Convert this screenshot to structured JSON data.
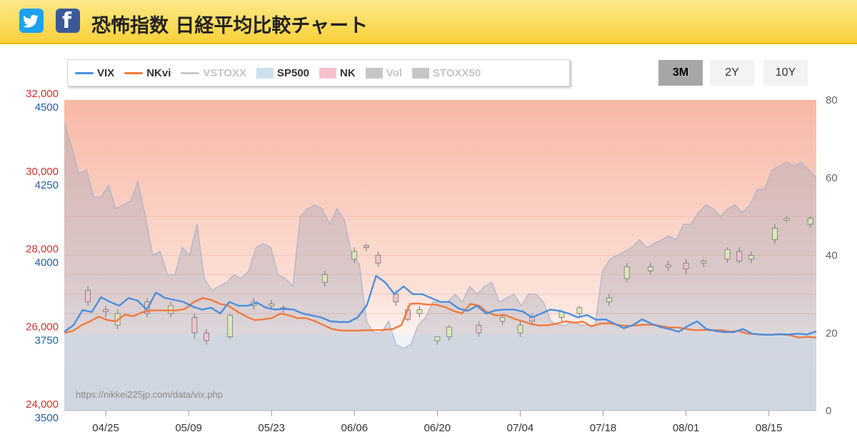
{
  "header": {
    "title": "恐怖指数 日経平均比較チャート",
    "twitter_icon": "twitter-icon",
    "facebook_icon": "facebook-icon"
  },
  "range_buttons": [
    {
      "label": "3M",
      "active": true
    },
    {
      "label": "2Y",
      "active": false
    },
    {
      "label": "10Y",
      "active": false
    }
  ],
  "colors": {
    "vix": "#4a8fe0",
    "nkvi": "#f07b3f",
    "vstoxx": "#c8c8c8",
    "sp500": "#cde0ee",
    "nk": "#f6c1cf",
    "vol": "#c6c6c6",
    "stoxx50": "#c6c6c6"
  },
  "chart_data": {
    "type": "line",
    "watermark": "https://nikkei225jp.com/data/vix.php",
    "legend": [
      {
        "name": "VIX",
        "kind": "line",
        "enabled": true
      },
      {
        "name": "NKvi",
        "kind": "line",
        "enabled": true
      },
      {
        "name": "VSTOXX",
        "kind": "line",
        "enabled": false
      },
      {
        "name": "SP500",
        "kind": "box",
        "enabled": true
      },
      {
        "name": "NK",
        "kind": "box",
        "enabled": true
      },
      {
        "name": "Vol",
        "kind": "box",
        "enabled": false
      },
      {
        "name": "STOXX50",
        "kind": "box",
        "enabled": false
      }
    ],
    "x_tick_labels": [
      "04/25",
      "05/09",
      "05/23",
      "06/06",
      "06/20",
      "07/04",
      "07/18",
      "08/01",
      "08/15"
    ],
    "axes": {
      "left_nk_ticks": [
        "32,000",
        "30,000",
        "28,000",
        "26,000",
        "24,000"
      ],
      "left_nk_range": [
        24000,
        32000
      ],
      "left_sp_ticks": [
        "4500",
        "4250",
        "4000",
        "3750",
        "3500"
      ],
      "left_sp_range": [
        3500,
        4500
      ],
      "right_ticks": [
        "80",
        "60",
        "40",
        "20",
        "0"
      ],
      "right_range": [
        0,
        80
      ]
    },
    "series": [
      {
        "name": "VIX",
        "values": [
          20.3,
          22,
          25.9,
          25.4,
          29.2,
          28,
          27,
          29,
          28.3,
          26,
          30.4,
          29,
          28.5,
          28,
          26.8,
          26,
          26.5,
          25,
          28,
          27,
          27,
          27.8,
          26.5,
          26,
          26.2,
          26,
          25,
          24.5,
          24,
          23,
          22.8,
          22.8,
          24,
          27.2,
          34.7,
          33,
          30,
          32,
          30,
          30,
          29,
          28,
          28,
          26.3,
          25.7,
          27,
          25,
          25.8,
          26,
          26,
          25.5,
          24,
          25,
          26,
          25.7,
          25,
          24,
          24.6,
          23.4,
          23.5,
          22.4,
          21.2,
          22,
          23.5,
          22.4,
          21.5,
          21,
          20.3,
          21.8,
          23,
          21,
          20.5,
          20.2,
          20.2,
          21,
          19.8,
          19.6,
          19.5,
          19.7,
          19.6,
          19.8,
          19.6,
          20.4
        ]
      },
      {
        "name": "NKvi",
        "values": [
          20,
          20.5,
          22,
          23,
          24.2,
          23.3,
          23,
          24.7,
          24.3,
          25.3,
          25.8,
          25.8,
          25.8,
          25.8,
          26.2,
          28,
          29,
          28.5,
          27.5,
          27,
          25.5,
          24.3,
          23.3,
          23.5,
          23.8,
          25,
          24.5,
          23.8,
          23.8,
          23,
          22,
          21,
          20.6,
          20.6,
          20.6,
          20.7,
          20.7,
          20.8,
          21,
          22,
          27.5,
          27.6,
          27.3,
          27.3,
          26.7,
          25.7,
          25,
          27.5,
          27,
          25.2,
          24.5,
          24.6,
          23.7,
          23,
          22.3,
          21.9,
          22,
          22.4,
          23,
          22.6,
          22.9,
          21.7,
          22.4,
          22.5,
          22.1,
          21.8,
          21.9,
          22.1,
          22.1,
          21.8,
          21.4,
          21.4,
          21,
          20.7,
          20.8,
          20.7,
          20.7,
          20.3,
          20.5,
          19.8,
          19.7,
          19.5,
          19.6,
          19.6,
          19.4,
          18.8,
          19,
          18.8
        ]
      },
      {
        "name": "Vol",
        "values": [
          74,
          68,
          61,
          62,
          55,
          55,
          58,
          52,
          53,
          54,
          59,
          50,
          40,
          41,
          35,
          35,
          42,
          40,
          48,
          34,
          31,
          32,
          33,
          35,
          34,
          36,
          42,
          43,
          42,
          35,
          34,
          32,
          50,
          52,
          53,
          52,
          48,
          52,
          49,
          40,
          38,
          23,
          20,
          20,
          23,
          17,
          16,
          17,
          22,
          24,
          28,
          28,
          28,
          30,
          28,
          32,
          30,
          32,
          33,
          28,
          29,
          30,
          27,
          30,
          30,
          28,
          23,
          22,
          22,
          23,
          22,
          22,
          22,
          36,
          39,
          40,
          41,
          42,
          44,
          42,
          43,
          44,
          45,
          44,
          48,
          48,
          51,
          53,
          52,
          50,
          52,
          53,
          51,
          53,
          57,
          57,
          62,
          63,
          64,
          63,
          64,
          62,
          60
        ]
      }
    ],
    "nk_candles": [
      {
        "date": "04/22",
        "open": 27100,
        "close": 26800,
        "high": 27200,
        "low": 26700
      },
      {
        "date": "04/25",
        "open": 26600,
        "close": 26550,
        "high": 26700,
        "low": 26400
      },
      {
        "date": "04/27",
        "open": 26200,
        "close": 26500,
        "high": 26600,
        "low": 26100
      },
      {
        "date": "05/02",
        "open": 26800,
        "close": 26500,
        "high": 26900,
        "low": 26400
      },
      {
        "date": "05/06",
        "open": 26500,
        "close": 26700,
        "high": 26800,
        "low": 26400
      },
      {
        "date": "05/10",
        "open": 26400,
        "close": 26000,
        "high": 26500,
        "low": 25850
      },
      {
        "date": "05/12",
        "open": 26000,
        "close": 25800,
        "high": 26100,
        "low": 25700
      },
      {
        "date": "05/16",
        "open": 25900,
        "close": 26450,
        "high": 26500,
        "low": 25850
      },
      {
        "date": "05/20",
        "open": 26700,
        "close": 26800,
        "high": 26900,
        "low": 26600
      },
      {
        "date": "05/23",
        "open": 26700,
        "close": 26750,
        "high": 26850,
        "low": 26600
      },
      {
        "date": "05/25",
        "open": 26650,
        "close": 26600,
        "high": 26700,
        "low": 26500
      },
      {
        "date": "06/01",
        "open": 27300,
        "close": 27500,
        "high": 27600,
        "low": 27200
      },
      {
        "date": "06/06",
        "open": 27900,
        "close": 28100,
        "high": 28200,
        "low": 27800
      },
      {
        "date": "06/08",
        "open": 28250,
        "close": 28200,
        "high": 28300,
        "low": 28100
      },
      {
        "date": "06/10",
        "open": 28000,
        "close": 27800,
        "high": 28100,
        "low": 27700
      },
      {
        "date": "06/13",
        "open": 27000,
        "close": 26800,
        "high": 27100,
        "low": 26700
      },
      {
        "date": "06/15",
        "open": 26600,
        "close": 26350,
        "high": 26700,
        "low": 26300
      },
      {
        "date": "06/17",
        "open": 26500,
        "close": 26600,
        "high": 26700,
        "low": 26400
      },
      {
        "date": "06/20",
        "open": 25800,
        "close": 25900,
        "high": 25900,
        "low": 25700
      },
      {
        "date": "06/22",
        "open": 25900,
        "close": 26150,
        "high": 26200,
        "low": 25800
      },
      {
        "date": "06/27",
        "open": 26200,
        "close": 26000,
        "high": 26300,
        "low": 25900
      },
      {
        "date": "07/01",
        "open": 26300,
        "close": 26400,
        "high": 26500,
        "low": 26200
      },
      {
        "date": "07/04",
        "open": 26000,
        "close": 26200,
        "high": 26300,
        "low": 25900
      },
      {
        "date": "07/06",
        "open": 26400,
        "close": 26300,
        "high": 26500,
        "low": 26200
      },
      {
        "date": "07/11",
        "open": 26400,
        "close": 26550,
        "high": 26600,
        "low": 26300
      },
      {
        "date": "07/14",
        "open": 26500,
        "close": 26650,
        "high": 26700,
        "low": 26400
      },
      {
        "date": "07/19",
        "open": 26800,
        "close": 26900,
        "high": 27000,
        "low": 26700
      },
      {
        "date": "07/22",
        "open": 27400,
        "close": 27700,
        "high": 27800,
        "low": 27300
      },
      {
        "date": "07/26",
        "open": 27600,
        "close": 27700,
        "high": 27800,
        "low": 27500
      },
      {
        "date": "07/29",
        "open": 27700,
        "close": 27750,
        "high": 27850,
        "low": 27600
      },
      {
        "date": "08/01",
        "open": 27800,
        "close": 27650,
        "high": 27900,
        "low": 27500
      },
      {
        "date": "08/04",
        "open": 27800,
        "close": 27850,
        "high": 27900,
        "low": 27700
      },
      {
        "date": "08/08",
        "open": 27900,
        "close": 28150,
        "high": 28200,
        "low": 27800
      },
      {
        "date": "08/10",
        "open": 28100,
        "close": 27850,
        "high": 28200,
        "low": 27800
      },
      {
        "date": "08/12",
        "open": 27900,
        "close": 28000,
        "high": 28100,
        "low": 27800
      },
      {
        "date": "08/16",
        "open": 28400,
        "close": 28700,
        "high": 28800,
        "low": 28300
      },
      {
        "date": "08/18",
        "open": 28900,
        "close": 28950,
        "high": 29000,
        "low": 28850
      },
      {
        "date": "08/22",
        "open": 28800,
        "close": 28950,
        "high": 29000,
        "low": 28700
      }
    ]
  }
}
